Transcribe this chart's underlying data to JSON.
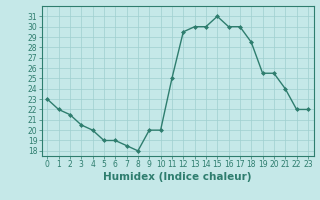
{
  "x": [
    0,
    1,
    2,
    3,
    4,
    5,
    6,
    7,
    8,
    9,
    10,
    11,
    12,
    13,
    14,
    15,
    16,
    17,
    18,
    19,
    20,
    21,
    22,
    23
  ],
  "y": [
    23,
    22,
    21.5,
    20.5,
    20,
    19,
    19,
    18.5,
    18,
    20,
    20,
    25,
    29.5,
    30,
    30,
    31,
    30,
    30,
    28.5,
    25.5,
    25.5,
    24,
    22,
    22
  ],
  "line_color": "#2e7d6e",
  "marker": "D",
  "marker_size": 2,
  "bg_color": "#c5e8e8",
  "grid_color": "#9fcfcf",
  "xlabel": "Humidex (Indice chaleur)",
  "xlim": [
    -0.5,
    23.5
  ],
  "ylim": [
    17.5,
    32
  ],
  "yticks": [
    18,
    19,
    20,
    21,
    22,
    23,
    24,
    25,
    26,
    27,
    28,
    29,
    30,
    31
  ],
  "xticks": [
    0,
    1,
    2,
    3,
    4,
    5,
    6,
    7,
    8,
    9,
    10,
    11,
    12,
    13,
    14,
    15,
    16,
    17,
    18,
    19,
    20,
    21,
    22,
    23
  ],
  "tick_fontsize": 5.5,
  "xlabel_fontsize": 7.5,
  "line_width": 1.0
}
